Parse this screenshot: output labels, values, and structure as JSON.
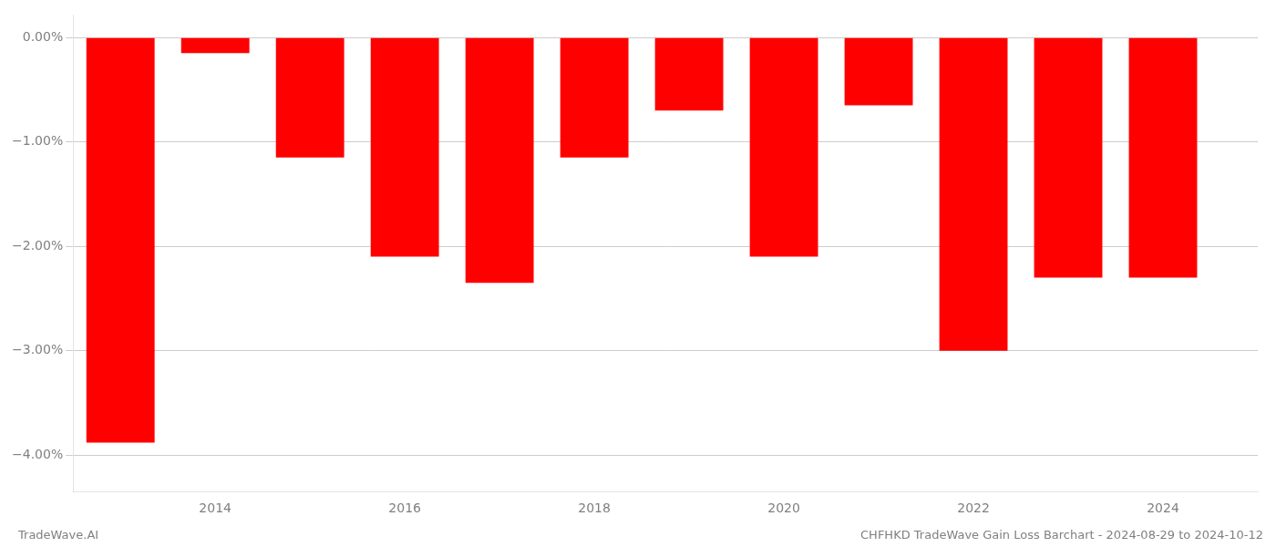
{
  "chart_data": {
    "type": "bar",
    "x": [
      2013,
      2014,
      2015,
      2016,
      2017,
      2018,
      2019,
      2020,
      2021,
      2022,
      2023,
      2024
    ],
    "values": [
      -3.88,
      -0.15,
      -1.15,
      -2.1,
      -2.35,
      -1.15,
      -0.7,
      -2.1,
      -0.65,
      -3.0,
      -2.3,
      -2.3
    ],
    "color": "#ff0000",
    "xlim": [
      2012.5,
      2025.0
    ],
    "xticks": [
      2014,
      2016,
      2018,
      2020,
      2022,
      2024
    ],
    "ylim": [
      -4.35,
      0.22
    ],
    "yticks": [
      {
        "value": 0.0,
        "label": "0.00%"
      },
      {
        "value": -1.0,
        "label": "−1.00%"
      },
      {
        "value": -2.0,
        "label": "−2.00%"
      },
      {
        "value": -3.0,
        "label": "−3.00%"
      },
      {
        "value": -4.0,
        "label": "−4.00%"
      }
    ],
    "grid": true,
    "annotations": [
      "TradeWave.AI",
      "CHFHKD TradeWave Gain Loss Barchart - 2024-08-29 to 2024-10-12"
    ]
  }
}
